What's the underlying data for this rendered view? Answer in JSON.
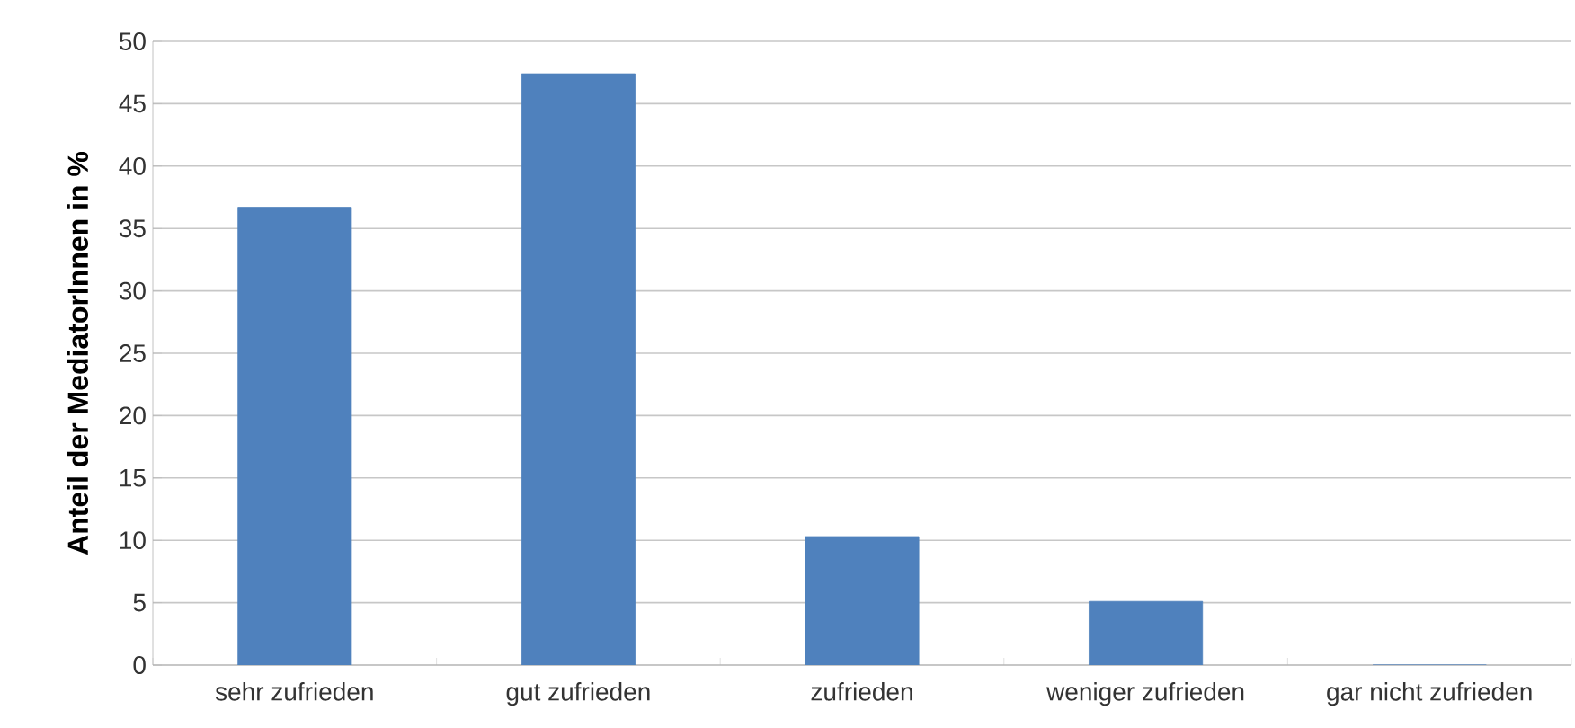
{
  "chart_data": {
    "type": "bar",
    "ylabel": "Anteil der MediatorInnen in %",
    "categories": [
      "sehr zufrieden",
      "gut zufrieden",
      "zufrieden",
      "weniger zufrieden",
      "gar nicht zufrieden"
    ],
    "values": [
      36.7,
      47.4,
      10.3,
      5.1,
      0
    ],
    "color": "#4f81bd",
    "ylim": [
      0,
      50
    ],
    "yticks": [
      0,
      5,
      10,
      15,
      20,
      25,
      30,
      35,
      40,
      45,
      50
    ],
    "grid": "y"
  }
}
